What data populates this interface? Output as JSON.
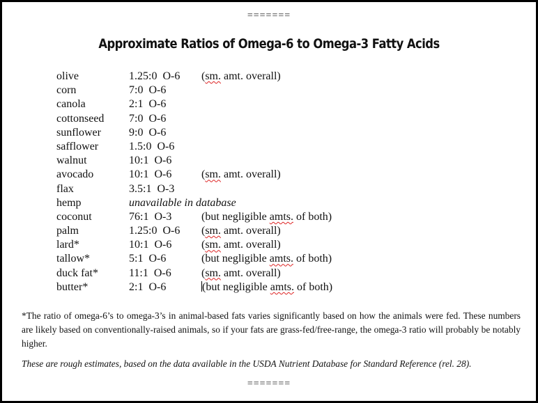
{
  "separator": "=======",
  "title": "Approximate Ratios of Omega-6 to Omega-3 Fatty Acids",
  "rows": [
    {
      "name": "olive",
      "ratio": "1.25:0  O-6",
      "note": "(sm. amt. overall)"
    },
    {
      "name": "corn",
      "ratio": "7:0  O-6",
      "note": ""
    },
    {
      "name": "canola",
      "ratio": "2:1  O-6",
      "note": ""
    },
    {
      "name": "cottonseed",
      "ratio": "7:0  O-6",
      "note": ""
    },
    {
      "name": "sunflower",
      "ratio": "9:0  O-6",
      "note": ""
    },
    {
      "name": "safflower",
      "ratio": "1.5:0  O-6",
      "note": ""
    },
    {
      "name": "walnut",
      "ratio": "10:1  O-6",
      "note": ""
    },
    {
      "name": "avocado",
      "ratio": "10:1  O-6",
      "note": "(sm. amt. overall)"
    },
    {
      "name": "flax",
      "ratio": "3.5:1  O-3",
      "note": ""
    },
    {
      "name": "hemp",
      "ratio": "unavailable in database",
      "note": "",
      "italic": true
    },
    {
      "name": "coconut",
      "ratio": "76:1  O-3",
      "note": "(but negligible amts. of both)"
    },
    {
      "name": "palm",
      "ratio": "1.25:0  O-6",
      "note": "(sm. amt. overall)"
    },
    {
      "name": "lard*",
      "ratio": "10:1  O-6",
      "note": "(sm. amt. overall)"
    },
    {
      "name": "tallow*",
      "ratio": "5:1  O-6",
      "note": "(but negligible amts. of both)"
    },
    {
      "name": "duck fat*",
      "ratio": "11:1  O-6",
      "note": "(sm. amt. overall)"
    },
    {
      "name": "butter*",
      "ratio": "2:1  O-6",
      "note": "(but negligible amts. of both)"
    }
  ],
  "footnote": "*The ratio of omega-6’s to omega-3’s in animal-based fats varies significantly based on how the animals were fed. These numbers are likely based on conventionally-raised animals, so if your fats are grass-fed/free-range, the omega-3 ratio will probably be notably higher.",
  "source": "These are rough estimates, based on the data available in the USDA Nutrient Database for Standard Reference (rel. 28)."
}
